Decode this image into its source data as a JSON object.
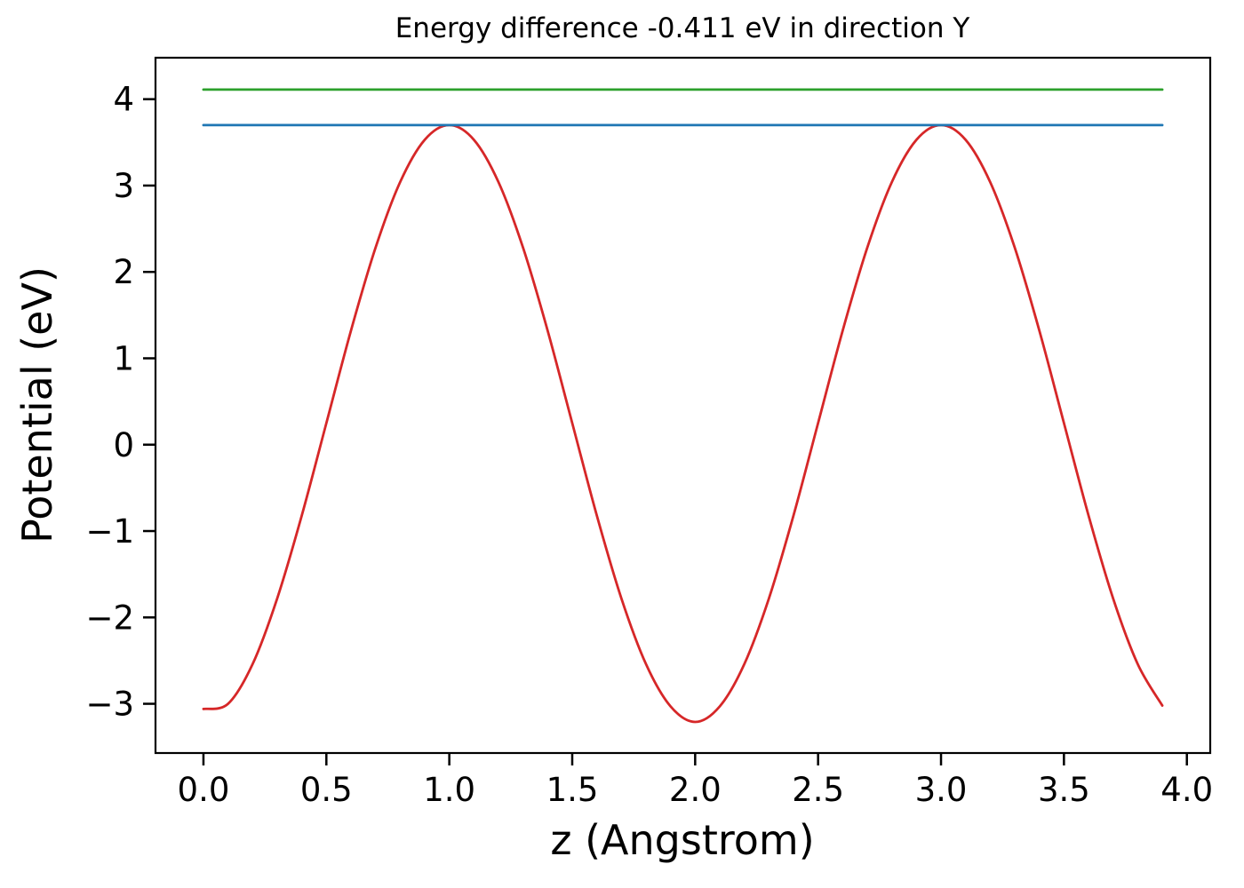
{
  "chart_data": {
    "type": "line",
    "title": "Energy difference -0.411 eV in direction Y",
    "xlabel": "z (Angstrom)",
    "ylabel": "Potential (eV)",
    "xlim": [
      -0.195,
      4.095
    ],
    "ylim": [
      -3.57,
      4.48
    ],
    "xticks": [
      0.0,
      0.5,
      1.0,
      1.5,
      2.0,
      2.5,
      3.0,
      3.5,
      4.0
    ],
    "xtick_labels": [
      "0.0",
      "0.5",
      "1.0",
      "1.5",
      "2.0",
      "2.5",
      "3.0",
      "3.5",
      "4.0"
    ],
    "yticks": [
      -3,
      -2,
      -1,
      0,
      1,
      2,
      3,
      4
    ],
    "ytick_labels": [
      "−3",
      "−2",
      "−1",
      "0",
      "1",
      "2",
      "3",
      "4"
    ],
    "grid": false,
    "legend_position": "none",
    "axes_color": "#000000",
    "series": [
      {
        "name": "potential-curve",
        "color": "#d62728",
        "smooth": true,
        "x": [
          0.0,
          0.1,
          0.2,
          0.3,
          0.4,
          0.5,
          0.6,
          0.7,
          0.8,
          0.9,
          1.0,
          1.1,
          1.2,
          1.3,
          1.4,
          1.5,
          1.6,
          1.7,
          1.8,
          1.9,
          2.0,
          2.1,
          2.2,
          2.3,
          2.4,
          2.5,
          2.6,
          2.7,
          2.8,
          2.9,
          3.0,
          3.1,
          3.2,
          3.3,
          3.4,
          3.5,
          3.6,
          3.7,
          3.8,
          3.9
        ],
        "y": [
          -3.06,
          -3.0,
          -2.54,
          -1.78,
          -0.82,
          0.25,
          1.32,
          2.28,
          3.04,
          3.53,
          3.7,
          3.53,
          3.04,
          2.28,
          1.32,
          0.25,
          -0.82,
          -1.78,
          -2.54,
          -3.03,
          -3.21,
          -3.03,
          -2.54,
          -1.78,
          -0.82,
          0.25,
          1.32,
          2.28,
          3.04,
          3.53,
          3.7,
          3.53,
          3.04,
          2.28,
          1.32,
          0.25,
          -0.82,
          -1.78,
          -2.54,
          -3.02
        ]
      },
      {
        "name": "level-blue",
        "color": "#1f77b4",
        "smooth": false,
        "x": [
          0.0,
          3.9
        ],
        "y": [
          3.7,
          3.7
        ]
      },
      {
        "name": "level-green",
        "color": "#2ca02c",
        "smooth": false,
        "x": [
          0.0,
          3.9
        ],
        "y": [
          4.111,
          4.111
        ]
      }
    ]
  }
}
